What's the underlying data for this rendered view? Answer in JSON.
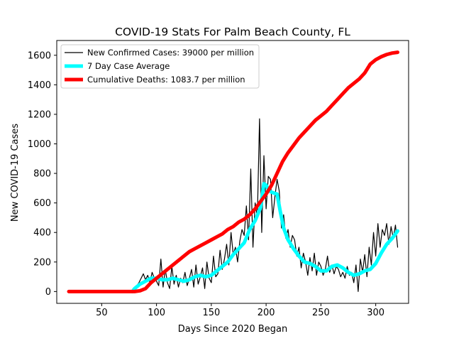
{
  "chart_data": {
    "type": "line",
    "title": "COVID-19 Stats For Palm Beach County, FL",
    "xlabel": "Days Since 2020 Began",
    "ylabel": "New COVID-19 Cases",
    "xlim": [
      9,
      330
    ],
    "ylim": [
      -80,
      1700
    ],
    "xticks": [
      50,
      100,
      150,
      200,
      250,
      300
    ],
    "yticks": [
      0,
      200,
      400,
      600,
      800,
      1000,
      1200,
      1400,
      1600
    ],
    "grid": false,
    "legend_position": "top-left",
    "series": [
      {
        "name": "New Confirmed Cases: 39000 per million",
        "color": "#000000",
        "style": "thin",
        "x": [
          20,
          30,
          40,
          50,
          60,
          70,
          75,
          78,
          80,
          82,
          84,
          86,
          88,
          90,
          92,
          94,
          96,
          98,
          100,
          102,
          104,
          106,
          108,
          110,
          112,
          114,
          116,
          118,
          120,
          122,
          124,
          126,
          128,
          130,
          132,
          134,
          136,
          138,
          140,
          142,
          144,
          146,
          148,
          150,
          152,
          154,
          156,
          158,
          160,
          162,
          164,
          166,
          168,
          170,
          172,
          174,
          176,
          178,
          180,
          182,
          184,
          186,
          188,
          190,
          192,
          194,
          196,
          198,
          200,
          202,
          204,
          206,
          208,
          210,
          212,
          214,
          216,
          218,
          220,
          222,
          224,
          226,
          228,
          230,
          232,
          234,
          236,
          238,
          240,
          242,
          244,
          246,
          248,
          250,
          252,
          254,
          256,
          258,
          260,
          262,
          264,
          266,
          268,
          270,
          272,
          274,
          276,
          278,
          280,
          282,
          284,
          286,
          288,
          290,
          292,
          294,
          296,
          298,
          300,
          302,
          304,
          306,
          308,
          310,
          312,
          314,
          316,
          318,
          320
        ],
        "values": [
          0,
          0,
          0,
          0,
          0,
          0,
          0,
          5,
          20,
          40,
          60,
          90,
          120,
          80,
          110,
          60,
          130,
          90,
          70,
          40,
          220,
          30,
          150,
          60,
          20,
          170,
          50,
          110,
          30,
          90,
          60,
          130,
          40,
          90,
          150,
          30,
          180,
          50,
          100,
          160,
          20,
          200,
          90,
          60,
          240,
          100,
          120,
          280,
          150,
          220,
          320,
          180,
          400,
          250,
          300,
          200,
          340,
          420,
          380,
          580,
          350,
          830,
          300,
          600,
          500,
          1170,
          400,
          920,
          560,
          780,
          760,
          500,
          640,
          760,
          680,
          430,
          520,
          360,
          420,
          300,
          380,
          350,
          240,
          300,
          160,
          260,
          200,
          110,
          230,
          140,
          260,
          110,
          200,
          170,
          110,
          150,
          240,
          130,
          180,
          120,
          170,
          150,
          100,
          130,
          90,
          170,
          110,
          130,
          60,
          180,
          0,
          220,
          130,
          250,
          100,
          300,
          180,
          400,
          240,
          460,
          300,
          420,
          380,
          460,
          320,
          440,
          360,
          450,
          300
        ]
      },
      {
        "name": "7 Day Case Average",
        "color": "#00ffff",
        "style": "thick",
        "x": [
          78,
          80,
          85,
          90,
          95,
          100,
          105,
          110,
          115,
          120,
          125,
          130,
          135,
          140,
          145,
          150,
          155,
          160,
          165,
          170,
          175,
          180,
          185,
          190,
          195,
          198,
          200,
          203,
          206,
          210,
          213,
          216,
          220,
          225,
          230,
          235,
          240,
          245,
          250,
          255,
          260,
          265,
          270,
          275,
          280,
          285,
          290,
          295,
          300,
          305,
          310,
          315,
          320
        ],
        "values": [
          0,
          20,
          50,
          70,
          90,
          90,
          80,
          80,
          90,
          80,
          70,
          80,
          100,
          110,
          100,
          110,
          140,
          170,
          200,
          250,
          290,
          330,
          420,
          480,
          570,
          730,
          720,
          680,
          670,
          660,
          540,
          430,
          350,
          290,
          240,
          200,
          190,
          170,
          140,
          140,
          170,
          180,
          160,
          130,
          110,
          120,
          140,
          150,
          190,
          260,
          320,
          360,
          410
        ]
      },
      {
        "name": "Cumulative Deaths: 1083.7 per million",
        "color": "#ff0000",
        "style": "thick",
        "x": [
          20,
          40,
          60,
          80,
          85,
          90,
          95,
          100,
          105,
          110,
          115,
          120,
          125,
          130,
          135,
          140,
          145,
          150,
          155,
          160,
          165,
          170,
          175,
          180,
          185,
          190,
          195,
          200,
          205,
          210,
          215,
          220,
          225,
          230,
          235,
          240,
          245,
          250,
          255,
          260,
          265,
          270,
          275,
          280,
          285,
          290,
          295,
          300,
          305,
          310,
          315,
          320
        ],
        "values": [
          0,
          0,
          0,
          0,
          5,
          20,
          60,
          90,
          120,
          150,
          180,
          210,
          240,
          270,
          290,
          310,
          330,
          350,
          370,
          390,
          420,
          440,
          470,
          490,
          520,
          560,
          610,
          660,
          720,
          800,
          880,
          940,
          990,
          1040,
          1080,
          1120,
          1160,
          1190,
          1220,
          1260,
          1300,
          1340,
          1380,
          1410,
          1440,
          1480,
          1540,
          1570,
          1590,
          1605,
          1615,
          1620
        ]
      }
    ]
  }
}
